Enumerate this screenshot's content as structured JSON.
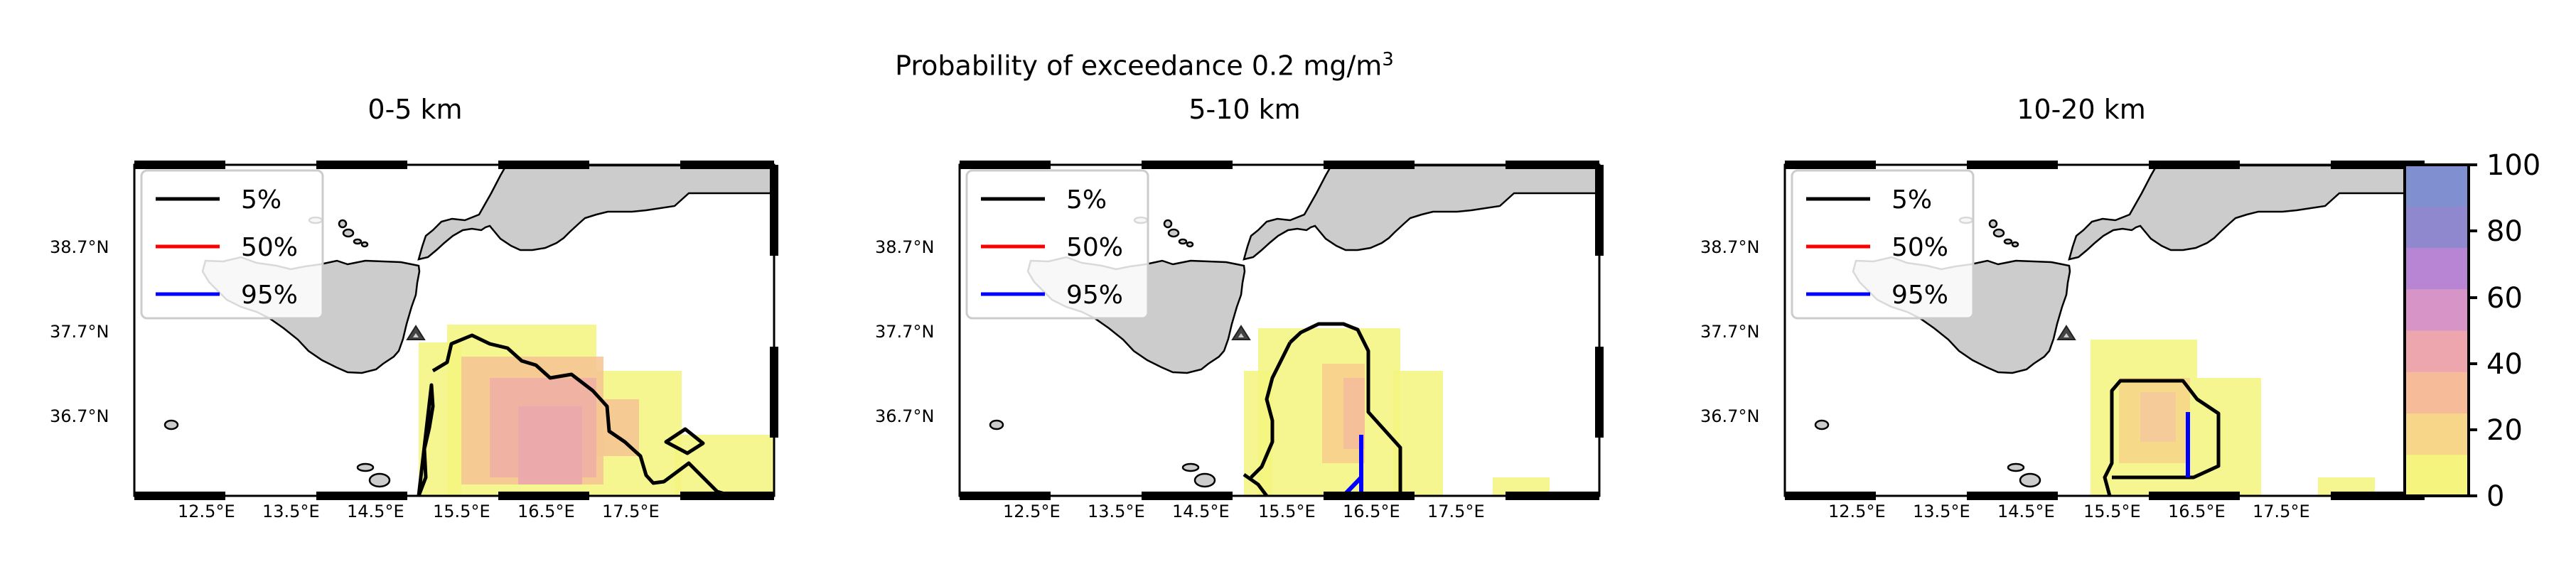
{
  "figure": {
    "suptitle_main": "Probability of exceedance 0.2 mg/m",
    "suptitle_sup": "3"
  },
  "panels": [
    {
      "title": "0-5 km"
    },
    {
      "title": "5-10 km"
    },
    {
      "title": "10-20 km"
    }
  ],
  "legend": {
    "entries": [
      {
        "label": "5%",
        "color": "#000000"
      },
      {
        "label": "50%",
        "color": "#ff0000"
      },
      {
        "label": "95%",
        "color": "#0000ff"
      }
    ]
  },
  "axes": {
    "lon_ticks": [
      "12.5°E",
      "13.5°E",
      "14.5°E",
      "15.5°E",
      "16.5°E",
      "17.5°E"
    ],
    "lat_ticks": [
      "38.7°N",
      "37.7°N",
      "36.7°N"
    ]
  },
  "colorbar": {
    "ticks": [
      "0",
      "20",
      "40",
      "60",
      "80",
      "100"
    ],
    "colors": [
      "#f4f47e",
      "#f7d68a",
      "#f6bc9a",
      "#eda6ad",
      "#d795c7",
      "#b785d4",
      "#9088cf",
      "#7f8fd0"
    ]
  },
  "colors": {
    "land": "#cccccc",
    "volcano_marker": "#444444"
  }
}
